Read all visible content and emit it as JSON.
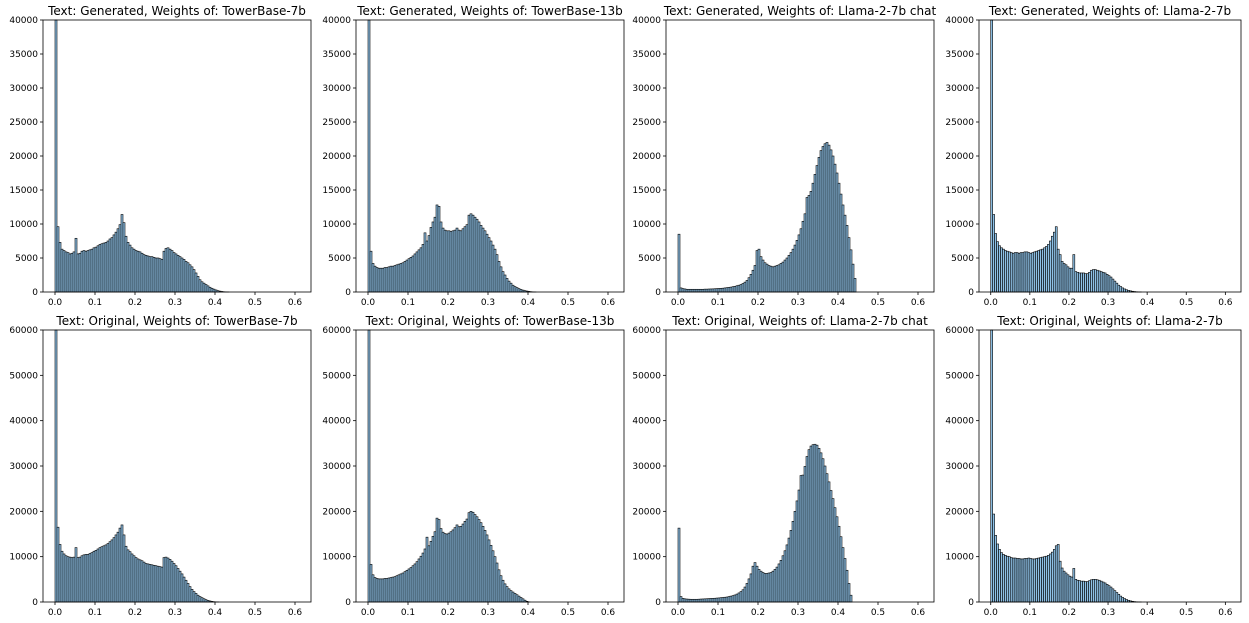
{
  "chart_data": [
    {
      "type": "bar",
      "title": "Text: Generated, Weights of: TowerBase-7b",
      "ylim": [
        0,
        40000
      ],
      "xlim": [
        -0.03,
        0.64
      ],
      "xticks": [
        "0.0",
        "0.1",
        "0.2",
        "0.3",
        "0.4",
        "0.5",
        "0.6"
      ],
      "yticks": [
        "0",
        "5000",
        "10000",
        "15000",
        "20000",
        "25000",
        "30000",
        "35000",
        "40000"
      ],
      "bin_width": 0.005,
      "values": [
        40000,
        9600,
        7300,
        6300,
        6100,
        5900,
        5800,
        5600,
        5700,
        5900,
        7900,
        5600,
        5700,
        6000,
        6100,
        6000,
        6100,
        6200,
        6300,
        6500,
        6600,
        6800,
        7000,
        7100,
        7200,
        7300,
        7500,
        7800,
        8000,
        8400,
        8800,
        9300,
        9900,
        11400,
        10200,
        8200,
        7300,
        6900,
        6500,
        6300,
        6100,
        6000,
        5900,
        5700,
        5500,
        5400,
        5300,
        5200,
        5200,
        5100,
        5000,
        5000,
        4900,
        4800,
        6000,
        6400,
        6500,
        6300,
        6100,
        5800,
        5600,
        5400,
        5200,
        5000,
        4800,
        4500,
        4300,
        4000,
        3700,
        3300,
        2800,
        2300,
        1800,
        1500,
        1300,
        1100,
        900,
        700,
        550,
        420,
        300,
        200,
        130,
        80,
        40,
        15,
        5,
        0,
        0,
        0,
        0,
        0,
        0,
        0,
        0,
        0,
        0,
        0,
        0,
        0,
        0,
        0,
        0,
        0,
        0,
        0,
        0,
        0,
        0,
        0,
        0,
        0,
        0,
        0,
        0,
        0,
        0,
        0,
        0,
        0,
        0,
        0,
        0,
        0,
        0
      ]
    },
    {
      "type": "bar",
      "title": "Text: Generated, Weights of: TowerBase-13b",
      "ylim": [
        0,
        40000
      ],
      "xlim": [
        -0.03,
        0.64
      ],
      "xticks": [
        "0.0",
        "0.1",
        "0.2",
        "0.3",
        "0.4",
        "0.5",
        "0.6"
      ],
      "yticks": [
        "0",
        "5000",
        "10000",
        "15000",
        "20000",
        "25000",
        "30000",
        "35000",
        "40000"
      ],
      "bin_width": 0.005,
      "values": [
        40000,
        6000,
        4200,
        3800,
        3600,
        3500,
        3500,
        3500,
        3600,
        3600,
        3700,
        3800,
        3800,
        3900,
        4000,
        4100,
        4200,
        4300,
        4500,
        4700,
        4900,
        5100,
        5300,
        5600,
        5900,
        6200,
        6500,
        7000,
        8700,
        7500,
        8300,
        9500,
        10300,
        11000,
        12800,
        12600,
        10300,
        9400,
        9100,
        9000,
        9000,
        8900,
        9000,
        9100,
        9400,
        9100,
        9000,
        9300,
        9600,
        9900,
        11300,
        11500,
        11300,
        11000,
        10700,
        10300,
        9800,
        9400,
        9000,
        8500,
        8000,
        7500,
        6900,
        6300,
        5500,
        4500,
        3700,
        3000,
        2500,
        2000,
        1600,
        1300,
        1000,
        800,
        650,
        500,
        380,
        280,
        200,
        140,
        90,
        50,
        20,
        5,
        0,
        0,
        0,
        0,
        0,
        0,
        0,
        0,
        0,
        0,
        0,
        0,
        0,
        0,
        0,
        0,
        0,
        0,
        0,
        0,
        0,
        0,
        0,
        0,
        0,
        0,
        0,
        0,
        0,
        0,
        0,
        0,
        0,
        0,
        0,
        0,
        0,
        0,
        0
      ]
    },
    {
      "type": "bar",
      "title": "Text: Generated, Weights of: Llama-2-7b chat",
      "ylim": [
        0,
        40000
      ],
      "xlim": [
        -0.03,
        0.64
      ],
      "xticks": [
        "0.0",
        "0.1",
        "0.2",
        "0.3",
        "0.4",
        "0.5",
        "0.6"
      ],
      "yticks": [
        "0",
        "5000",
        "10000",
        "15000",
        "20000",
        "25000",
        "30000",
        "35000",
        "40000"
      ],
      "bin_width": 0.005,
      "values": [
        8500,
        600,
        500,
        450,
        400,
        400,
        400,
        400,
        400,
        400,
        400,
        400,
        400,
        420,
        420,
        440,
        450,
        460,
        480,
        500,
        520,
        540,
        560,
        600,
        640,
        680,
        720,
        780,
        840,
        920,
        1000,
        1100,
        1250,
        1450,
        1700,
        2100,
        2600,
        3200,
        3900,
        6100,
        6300,
        5200,
        4700,
        4300,
        4100,
        3900,
        3800,
        3700,
        3800,
        3900,
        4000,
        4200,
        4400,
        4700,
        5000,
        5400,
        5800,
        6300,
        6900,
        7600,
        8400,
        9300,
        10400,
        11500,
        13900,
        14200,
        14800,
        16000,
        17300,
        18600,
        19800,
        20800,
        21400,
        21800,
        22000,
        21600,
        20900,
        20000,
        18800,
        17500,
        16000,
        14400,
        12800,
        11300,
        9800,
        8000,
        6200,
        4100,
        2000,
        0,
        0,
        0,
        0,
        0,
        0,
        0,
        0,
        0,
        0,
        0,
        0,
        0,
        0,
        0,
        0,
        0,
        0,
        0,
        0,
        0,
        0,
        0,
        0,
        0,
        0,
        0,
        0,
        0,
        0,
        0,
        0,
        0,
        0,
        0,
        0
      ]
    },
    {
      "type": "bar",
      "title": "Text: Generated, Weights of: Llama-2-7b",
      "ylim": [
        0,
        40000
      ],
      "xlim": [
        -0.03,
        0.64
      ],
      "xticks": [
        "0.0",
        "0.1",
        "0.2",
        "0.3",
        "0.4",
        "0.5",
        "0.6"
      ],
      "yticks": [
        "0",
        "5000",
        "10000",
        "15000",
        "20000",
        "25000",
        "30000",
        "35000",
        "40000"
      ],
      "bin_width": 0.005,
      "values": [
        40000,
        11400,
        8600,
        7400,
        6800,
        6500,
        6300,
        6100,
        6000,
        5900,
        5800,
        5700,
        5800,
        5800,
        5700,
        5800,
        5800,
        5900,
        5900,
        5800,
        5700,
        5800,
        5900,
        6000,
        6100,
        6200,
        6300,
        6500,
        6700,
        7000,
        7500,
        8200,
        8800,
        9600,
        6300,
        5500,
        4500,
        4200,
        4000,
        3700,
        3500,
        3500,
        5500,
        3000,
        2900,
        2800,
        2800,
        2800,
        2700,
        2700,
        2900,
        3200,
        3300,
        3300,
        3200,
        3100,
        3000,
        2900,
        2800,
        2600,
        2400,
        2200,
        1900,
        1600,
        1300,
        1000,
        800,
        600,
        450,
        330,
        240,
        170,
        110,
        70,
        40,
        20,
        8,
        0,
        0,
        0,
        0,
        0,
        0,
        0,
        0,
        0,
        0,
        0,
        0,
        0,
        0,
        0,
        0,
        0,
        0,
        0,
        0,
        0,
        0,
        0,
        0,
        0,
        0,
        0,
        0,
        0,
        0,
        0,
        0,
        0,
        0,
        0,
        0,
        0,
        0,
        0,
        0,
        0,
        0,
        0,
        0,
        0,
        0
      ]
    },
    {
      "type": "bar",
      "title": "Text: Original, Weights of: TowerBase-7b",
      "ylim": [
        0,
        60000
      ],
      "xlim": [
        -0.03,
        0.64
      ],
      "xticks": [
        "0.0",
        "0.1",
        "0.2",
        "0.3",
        "0.4",
        "0.5",
        "0.6"
      ],
      "yticks": [
        "0",
        "10000",
        "20000",
        "30000",
        "40000",
        "50000",
        "60000"
      ],
      "bin_width": 0.005,
      "values": [
        60000,
        16500,
        12700,
        11200,
        10600,
        10200,
        10000,
        9900,
        9800,
        9900,
        12000,
        9800,
        9900,
        10200,
        10400,
        10500,
        10500,
        10700,
        10900,
        11200,
        11400,
        11700,
        12000,
        12200,
        12400,
        12600,
        12900,
        13300,
        13700,
        14200,
        14800,
        15400,
        16300,
        17000,
        14800,
        12300,
        11500,
        11100,
        10600,
        10200,
        9800,
        9500,
        9300,
        9100,
        8800,
        8500,
        8400,
        8300,
        8200,
        8100,
        8000,
        7900,
        7800,
        7700,
        9800,
        9900,
        9700,
        9400,
        9000,
        8500,
        8000,
        7400,
        6800,
        6200,
        5500,
        4800,
        4100,
        3400,
        2800,
        2300,
        1900,
        1500,
        1200,
        950,
        720,
        520,
        360,
        230,
        140,
        70,
        30,
        10,
        0,
        0,
        0,
        0,
        0,
        0,
        0,
        0,
        0,
        0,
        0,
        0,
        0,
        0,
        0,
        0,
        0,
        0,
        0,
        0,
        0,
        0,
        0,
        0,
        0,
        0,
        0,
        0,
        0,
        0,
        0,
        0,
        0,
        0,
        0,
        0,
        0,
        0,
        0,
        0,
        0,
        0
      ]
    },
    {
      "type": "bar",
      "title": "Text: Original, Weights of: TowerBase-13b",
      "ylim": [
        0,
        60000
      ],
      "xlim": [
        -0.03,
        0.64
      ],
      "xticks": [
        "0.0",
        "0.1",
        "0.2",
        "0.3",
        "0.4",
        "0.5",
        "0.6"
      ],
      "yticks": [
        "0",
        "10000",
        "20000",
        "30000",
        "40000",
        "50000",
        "60000"
      ],
      "bin_width": 0.005,
      "values": [
        60000,
        8300,
        6000,
        5400,
        5200,
        5100,
        5100,
        5100,
        5200,
        5200,
        5300,
        5400,
        5500,
        5600,
        5800,
        6000,
        6200,
        6400,
        6700,
        7000,
        7300,
        7600,
        8000,
        8400,
        8900,
        9500,
        10100,
        10800,
        11700,
        14300,
        12400,
        13400,
        14500,
        15500,
        18500,
        18200,
        16200,
        15400,
        15100,
        15000,
        15200,
        15500,
        15900,
        16400,
        17000,
        16600,
        16700,
        17200,
        17800,
        18300,
        19700,
        20000,
        19800,
        19300,
        18800,
        18200,
        17500,
        16700,
        15800,
        14800,
        13700,
        12500,
        11300,
        10000,
        8600,
        7100,
        5800,
        4800,
        4000,
        3400,
        2900,
        2500,
        2200,
        1900,
        1600,
        1300,
        1000,
        700,
        400,
        150,
        30,
        0,
        0,
        0,
        0,
        0,
        0,
        0,
        0,
        0,
        0,
        0,
        0,
        0,
        0,
        0,
        0,
        0,
        0,
        0,
        0,
        0,
        0,
        0,
        0,
        0,
        0,
        0,
        0,
        0,
        0,
        0,
        0,
        0,
        0,
        0,
        0,
        0,
        0,
        0,
        0,
        0,
        0,
        0
      ]
    },
    {
      "type": "bar",
      "title": "Text: Original, Weights of: Llama-2-7b chat",
      "ylim": [
        0,
        60000
      ],
      "xlim": [
        -0.03,
        0.64
      ],
      "xticks": [
        "0.0",
        "0.1",
        "0.2",
        "0.3",
        "0.4",
        "0.5",
        "0.6"
      ],
      "yticks": [
        "0",
        "10000",
        "20000",
        "30000",
        "40000",
        "50000",
        "60000"
      ],
      "bin_width": 0.005,
      "values": [
        16300,
        1200,
        800,
        700,
        650,
        620,
        600,
        600,
        600,
        600,
        620,
        650,
        670,
        700,
        720,
        750,
        780,
        800,
        830,
        870,
        900,
        950,
        1000,
        1050,
        1100,
        1200,
        1300,
        1400,
        1550,
        1750,
        2000,
        2300,
        2700,
        3300,
        4100,
        5100,
        6200,
        7900,
        8700,
        7900,
        7200,
        6800,
        6500,
        6300,
        6300,
        6400,
        6500,
        6800,
        7200,
        7700,
        8400,
        9200,
        10200,
        11300,
        12600,
        14100,
        15800,
        17800,
        20000,
        22300,
        24700,
        27900,
        28000,
        29900,
        32100,
        33600,
        34400,
        34700,
        34800,
        34600,
        33900,
        32900,
        31600,
        30000,
        28300,
        26500,
        24600,
        22800,
        20800,
        18800,
        16700,
        14400,
        12000,
        9600,
        7000,
        4100,
        1500,
        0,
        0,
        0,
        0,
        0,
        0,
        0,
        0,
        0,
        0,
        0,
        0,
        0,
        0,
        0,
        0,
        0,
        0,
        0,
        0,
        0,
        0,
        0,
        0,
        0,
        0,
        0,
        0,
        0,
        0,
        0,
        0,
        0,
        0,
        0,
        0,
        0,
        0
      ]
    },
    {
      "type": "bar",
      "title": "Text: Original, Weights of: Llama-2-7b",
      "ylim": [
        0,
        60000
      ],
      "xlim": [
        -0.03,
        0.64
      ],
      "xticks": [
        "0.0",
        "0.1",
        "0.2",
        "0.3",
        "0.4",
        "0.5",
        "0.6"
      ],
      "yticks": [
        "0",
        "10000",
        "20000",
        "30000",
        "40000",
        "50000",
        "60000"
      ],
      "bin_width": 0.005,
      "values": [
        60000,
        19400,
        14700,
        12800,
        11600,
        10900,
        10500,
        10300,
        10100,
        10000,
        9800,
        9700,
        9700,
        9600,
        9600,
        9500,
        9500,
        9600,
        9600,
        9700,
        9600,
        9500,
        9500,
        9600,
        9700,
        9800,
        9900,
        10000,
        10100,
        10300,
        10600,
        11000,
        11600,
        12400,
        12700,
        9000,
        7500,
        6800,
        6400,
        6000,
        5700,
        5500,
        7400,
        5000,
        4800,
        4700,
        4600,
        4600,
        4500,
        4500,
        4700,
        4900,
        5000,
        5000,
        4900,
        4800,
        4600,
        4400,
        4200,
        3900,
        3600,
        3300,
        2900,
        2500,
        2100,
        1700,
        1300,
        1000,
        750,
        550,
        380,
        250,
        160,
        90,
        50,
        20,
        8,
        0,
        0,
        0,
        0,
        0,
        0,
        0,
        0,
        0,
        0,
        0,
        0,
        0,
        0,
        0,
        0,
        0,
        0,
        0,
        0,
        0,
        0,
        0,
        0,
        0,
        0,
        0,
        0,
        0,
        0,
        0,
        0,
        0,
        0,
        0,
        0,
        0,
        0,
        0,
        0,
        0,
        0,
        0,
        0,
        0,
        0,
        0
      ]
    }
  ]
}
